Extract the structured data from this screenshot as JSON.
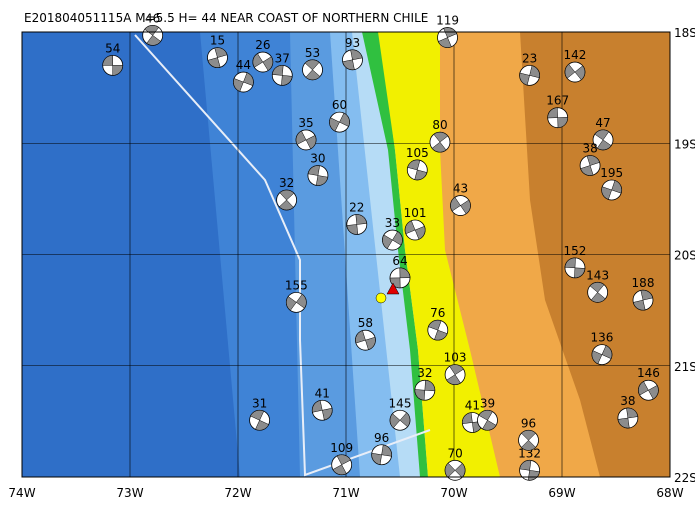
{
  "chart_data": {
    "type": "map",
    "title": "E201804051115A M=5.5 H= 44 NEAR COAST OF NORTHERN CHILE",
    "xlim": [
      -74,
      -68
    ],
    "ylim": [
      -22,
      -18
    ],
    "xticks": [
      {
        "value": -74,
        "label": "74W"
      },
      {
        "value": -73,
        "label": "73W"
      },
      {
        "value": -72,
        "label": "72W"
      },
      {
        "value": -71,
        "label": "71W"
      },
      {
        "value": -70,
        "label": "70W"
      },
      {
        "value": -69,
        "label": "69W"
      },
      {
        "value": -68,
        "label": "68W"
      }
    ],
    "yticks": [
      {
        "value": -18,
        "label": "18S"
      },
      {
        "value": -19,
        "label": "19S"
      },
      {
        "value": -20,
        "label": "20S"
      },
      {
        "value": -21,
        "label": "21S"
      },
      {
        "value": -22,
        "label": "22S"
      }
    ],
    "grid": true,
    "events": [
      {
        "label": "54",
        "lon": -73.16,
        "lat": -18.3
      },
      {
        "label": "46",
        "lon": -72.79,
        "lat": -18.03
      },
      {
        "label": "15",
        "lon": -72.19,
        "lat": -18.23
      },
      {
        "label": "44",
        "lon": -71.95,
        "lat": -18.45
      },
      {
        "label": "26",
        "lon": -71.77,
        "lat": -18.27
      },
      {
        "label": "37",
        "lon": -71.59,
        "lat": -18.39
      },
      {
        "label": "53",
        "lon": -71.31,
        "lat": -18.34
      },
      {
        "label": "93",
        "lon": -70.94,
        "lat": -18.25
      },
      {
        "label": "60",
        "lon": -71.06,
        "lat": -18.81
      },
      {
        "label": "35",
        "lon": -71.37,
        "lat": -18.97
      },
      {
        "label": "30",
        "lon": -71.26,
        "lat": -19.29
      },
      {
        "label": "32",
        "lon": -71.55,
        "lat": -19.51
      },
      {
        "label": "22",
        "lon": -70.9,
        "lat": -19.73
      },
      {
        "label": "33",
        "lon": -70.57,
        "lat": -19.87
      },
      {
        "label": "101",
        "lon": -70.36,
        "lat": -19.78
      },
      {
        "label": "105",
        "lon": -70.34,
        "lat": -19.24
      },
      {
        "label": "80",
        "lon": -70.13,
        "lat": -18.99
      },
      {
        "label": "64",
        "lon": -70.5,
        "lat": -20.21
      },
      {
        "label": "155",
        "lon": -71.46,
        "lat": -20.43
      },
      {
        "label": "58",
        "lon": -70.82,
        "lat": -20.77
      },
      {
        "label": "76",
        "lon": -70.15,
        "lat": -20.68
      },
      {
        "label": "103",
        "lon": -69.99,
        "lat": -21.08
      },
      {
        "label": "32",
        "lon": -70.27,
        "lat": -21.22
      },
      {
        "label": "145",
        "lon": -70.5,
        "lat": -21.49
      },
      {
        "label": "41",
        "lon": -71.22,
        "lat": -21.4
      },
      {
        "label": "31",
        "lon": -71.8,
        "lat": -21.49
      },
      {
        "label": "109",
        "lon": -71.04,
        "lat": -21.89
      },
      {
        "label": "96",
        "lon": -70.67,
        "lat": -21.8
      },
      {
        "label": "70",
        "lon": -69.99,
        "lat": -21.94
      },
      {
        "label": "41",
        "lon": -69.83,
        "lat": -21.51
      },
      {
        "label": "39",
        "lon": -69.69,
        "lat": -21.49
      },
      {
        "label": "119",
        "lon": -70.06,
        "lat": -18.05
      },
      {
        "label": "23",
        "lon": -69.3,
        "lat": -18.39
      },
      {
        "label": "142",
        "lon": -68.88,
        "lat": -18.36
      },
      {
        "label": "167",
        "lon": -69.04,
        "lat": -18.77
      },
      {
        "label": "47",
        "lon": -68.62,
        "lat": -18.97
      },
      {
        "label": "38",
        "lon": -68.74,
        "lat": -19.2
      },
      {
        "label": "195",
        "lon": -68.54,
        "lat": -19.42
      },
      {
        "label": "43",
        "lon": -69.94,
        "lat": -19.56
      },
      {
        "label": "152",
        "lon": -68.88,
        "lat": -20.12
      },
      {
        "label": "143",
        "lon": -68.67,
        "lat": -20.34
      },
      {
        "label": "188",
        "lon": -68.25,
        "lat": -20.41
      },
      {
        "label": "136",
        "lon": -68.63,
        "lat": -20.9
      },
      {
        "label": "146",
        "lon": -68.2,
        "lat": -21.22
      },
      {
        "label": "132",
        "lon": -69.3,
        "lat": -21.94
      },
      {
        "label": "96",
        "lon": -69.31,
        "lat": -21.67
      },
      {
        "label": "38",
        "lon": -68.39,
        "lat": -21.47
      }
    ]
  }
}
